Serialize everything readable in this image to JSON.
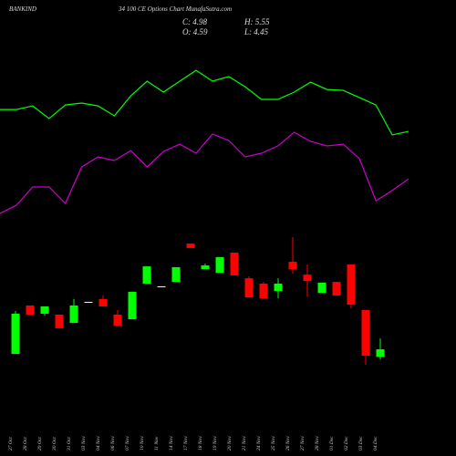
{
  "header": {
    "symbol": "BANKIND",
    "title": "34 100 CE Options  Chart MunafaSutra.com",
    "close": "C: 4.98",
    "high": "H: 5.55",
    "open": "O: 4.59",
    "low": "L: 4.45"
  },
  "chart_data": {
    "type": "candlestick",
    "categories": [
      "27 Oct",
      "28 Oct",
      "29 Oct",
      "30 Oct",
      "31 Oct",
      "03 Nov",
      "04 Nov",
      "06 Nov",
      "07 Nov",
      "10 Nov",
      "11 Nov",
      "14 Nov",
      "17 Nov",
      "18 Nov",
      "19 Nov",
      "20 Nov",
      "21 Nov",
      "24 Nov",
      "25 Nov",
      "26 Nov",
      "27 Nov",
      "28 Nov",
      "01 Dec",
      "02 Dec",
      "03 Dec",
      "04 Dec"
    ],
    "open": [
      4.74,
      7.27,
      6.84,
      6.79,
      6.36,
      7.46,
      7.6,
      6.79,
      6.55,
      8.41,
      8.27,
      8.5,
      10.5,
      9.17,
      8.98,
      10.03,
      8.69,
      8.41,
      8.03,
      9.55,
      8.88,
      7.93,
      8.5,
      9.41,
      7.03,
      4.59
    ],
    "high": [
      6.98,
      7.27,
      7.22,
      6.79,
      7.6,
      7.46,
      7.79,
      7.03,
      7.98,
      9.31,
      8.27,
      9.27,
      10.5,
      9.46,
      9.79,
      10.03,
      8.79,
      8.5,
      8.69,
      10.84,
      9.41,
      8.46,
      8.5,
      9.41,
      7.03,
      5.55
    ],
    "low": [
      4.74,
      6.79,
      6.74,
      6.08,
      6.36,
      7.46,
      7.22,
      6.22,
      6.55,
      8.41,
      8.27,
      8.5,
      10.27,
      9.17,
      8.98,
      8.84,
      7.69,
      7.65,
      7.65,
      8.93,
      7.74,
      7.93,
      7.79,
      7.12,
      4.17,
      4.45
    ],
    "close": [
      6.84,
      6.79,
      7.22,
      6.08,
      7.27,
      7.46,
      7.22,
      6.22,
      7.98,
      9.31,
      8.27,
      9.27,
      10.27,
      9.36,
      9.79,
      8.84,
      7.69,
      7.65,
      8.41,
      9.17,
      8.55,
      8.46,
      7.79,
      7.31,
      4.65,
      4.98
    ],
    "up_color": "#00ff00",
    "down_color": "#ff0000",
    "doji_color": "#ffffff",
    "lines": [
      {
        "color": "#00ff00",
        "values": [
          17.5,
          17.5,
          17.69,
          17.03,
          17.74,
          17.84,
          17.69,
          17.17,
          18.22,
          18.98,
          18.41,
          18.98,
          19.55,
          18.98,
          19.22,
          18.69,
          18.03,
          18.03,
          18.41,
          18.93,
          18.55,
          18.5,
          18.12,
          17.74,
          16.17,
          16.36
        ]
      },
      {
        "color": "#cc00cc",
        "values": [
          12.08,
          12.5,
          13.46,
          13.46,
          12.6,
          14.5,
          15.03,
          14.84,
          15.36,
          14.5,
          15.31,
          15.69,
          15.22,
          16.22,
          15.88,
          15.03,
          15.22,
          15.6,
          16.31,
          15.84,
          15.6,
          15.69,
          14.93,
          12.74,
          13.27,
          13.88
        ]
      }
    ],
    "ylim": [
      -0.59,
      23.22
    ]
  }
}
